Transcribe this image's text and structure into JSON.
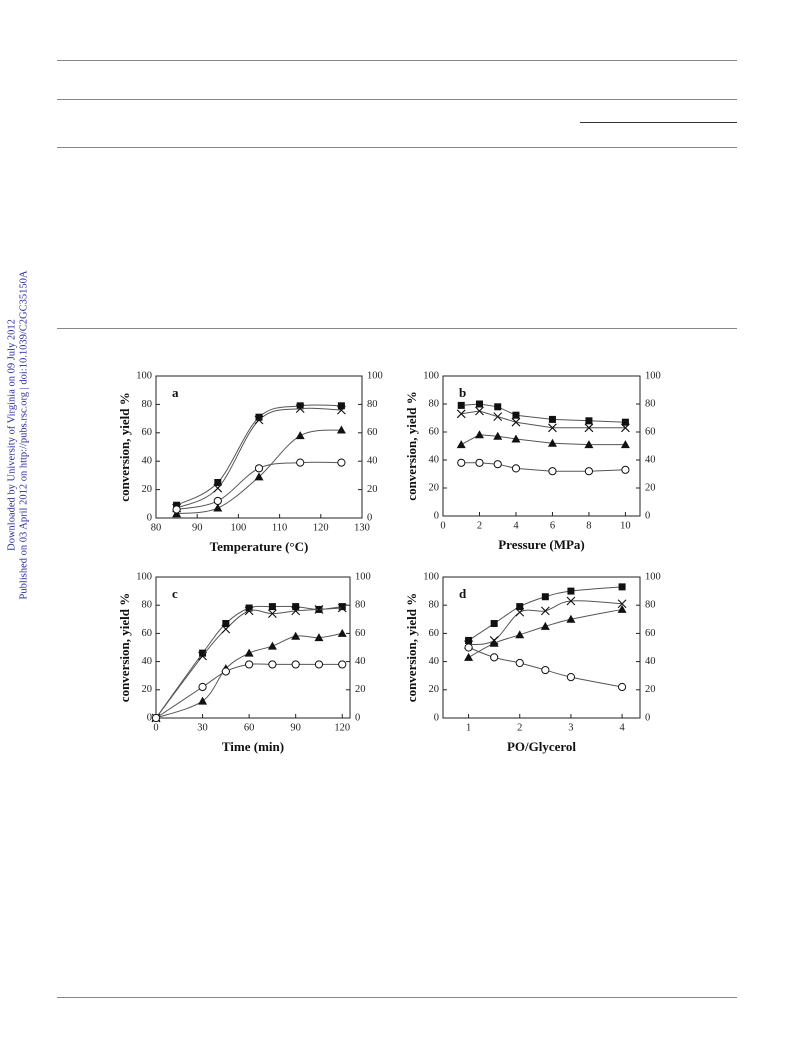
{
  "side_note": {
    "downloaded": "Downloaded by University of Virginia on 09 July 2012",
    "published": "Published on 03 April 2012 on http://pubs.rsc.org | doi:10.1039/C2GC35150A"
  },
  "chart_data": [
    {
      "type": "line",
      "panel": "a",
      "smooth": true,
      "xlabel": "Temperature (°C)",
      "ylabel": "conversion, yield %",
      "xlim": [
        80,
        130
      ],
      "xticks": [
        80,
        90,
        100,
        110,
        120,
        130
      ],
      "ylim": [
        0,
        100
      ],
      "yticks": [
        0,
        20,
        40,
        60,
        80,
        100
      ],
      "y2lim": [
        0,
        100
      ],
      "y2ticks": [
        0,
        20,
        40,
        60,
        80,
        100
      ],
      "x": [
        85,
        95,
        105,
        115,
        125
      ],
      "series": [
        {
          "marker": "square",
          "color": "#111111",
          "values": [
            9,
            25,
            71,
            79,
            79
          ]
        },
        {
          "marker": "x",
          "color": "#111111",
          "values": [
            7,
            21,
            69,
            77,
            76
          ]
        },
        {
          "marker": "triangle",
          "color": "#111111",
          "values": [
            3,
            7,
            29,
            58,
            62
          ]
        },
        {
          "marker": "circle",
          "color": "#111111",
          "values": [
            6,
            12,
            35,
            39,
            39
          ]
        }
      ]
    },
    {
      "type": "line",
      "panel": "b",
      "smooth": false,
      "xlabel": "Pressure (MPa)",
      "ylabel": "conversion, yield %",
      "xlim": [
        0,
        10.8
      ],
      "xticks": [
        0,
        2,
        4,
        6,
        8,
        10
      ],
      "ylim": [
        0,
        100
      ],
      "yticks": [
        0,
        20,
        40,
        60,
        80,
        100
      ],
      "y2lim": [
        0,
        100
      ],
      "y2ticks": [
        0,
        20,
        40,
        60,
        80,
        100
      ],
      "x": [
        1,
        2,
        3,
        4,
        6,
        8,
        10
      ],
      "series": [
        {
          "marker": "square",
          "color": "#111111",
          "values": [
            79,
            80,
            78,
            72,
            69,
            68,
            67
          ]
        },
        {
          "marker": "x",
          "color": "#111111",
          "values": [
            73,
            75,
            71,
            67,
            63,
            63,
            63
          ]
        },
        {
          "marker": "triangle",
          "color": "#111111",
          "values": [
            51,
            58,
            57,
            55,
            52,
            51,
            51
          ]
        },
        {
          "marker": "circle",
          "color": "#111111",
          "values": [
            38,
            38,
            37,
            34,
            32,
            32,
            33
          ]
        }
      ]
    },
    {
      "type": "line",
      "panel": "c",
      "smooth": true,
      "xlabel": "Time (min)",
      "ylabel": "conversion, yield %",
      "xlim": [
        0,
        125
      ],
      "xticks": [
        0,
        30,
        60,
        90,
        120
      ],
      "ylim": [
        0,
        100
      ],
      "yticks": [
        0,
        20,
        40,
        60,
        80,
        100
      ],
      "y2lim": [
        0,
        100
      ],
      "y2ticks": [
        0,
        20,
        40,
        60,
        80,
        100
      ],
      "x": [
        0,
        30,
        45,
        60,
        75,
        90,
        105,
        120
      ],
      "series": [
        {
          "marker": "square",
          "color": "#111111",
          "values": [
            0,
            46,
            67,
            78,
            79,
            79,
            77,
            79
          ]
        },
        {
          "marker": "x",
          "color": "#111111",
          "values": [
            0,
            44,
            63,
            76,
            74,
            76,
            77,
            78
          ]
        },
        {
          "marker": "triangle",
          "color": "#111111",
          "values": [
            0,
            12,
            35,
            46,
            51,
            58,
            57,
            60
          ]
        },
        {
          "marker": "circle",
          "color": "#111111",
          "values": [
            0,
            22,
            33,
            38,
            38,
            38,
            38,
            38
          ]
        }
      ]
    },
    {
      "type": "line",
      "panel": "d",
      "smooth": true,
      "xlabel": "PO/Glycerol",
      "ylabel": "conversion, yield %",
      "xlim": [
        0.5,
        4.35
      ],
      "xticks": [
        1,
        2,
        3,
        4
      ],
      "ylim": [
        0,
        100
      ],
      "yticks": [
        0,
        20,
        40,
        60,
        80,
        100
      ],
      "y2lim": [
        0,
        100
      ],
      "y2ticks": [
        0,
        20,
        40,
        60,
        80,
        100
      ],
      "x": [
        1,
        1.5,
        2,
        2.5,
        3,
        4
      ],
      "series": [
        {
          "marker": "square",
          "color": "#111111",
          "values": [
            55,
            67,
            79,
            86,
            90,
            93
          ]
        },
        {
          "marker": "x",
          "color": "#111111",
          "values": [
            52,
            55,
            75,
            76,
            83,
            81
          ]
        },
        {
          "marker": "triangle",
          "color": "#111111",
          "values": [
            43,
            53,
            59,
            65,
            70,
            77
          ]
        },
        {
          "marker": "circle",
          "color": "#111111",
          "values": [
            50,
            43,
            39,
            34,
            29,
            22
          ]
        }
      ]
    }
  ]
}
